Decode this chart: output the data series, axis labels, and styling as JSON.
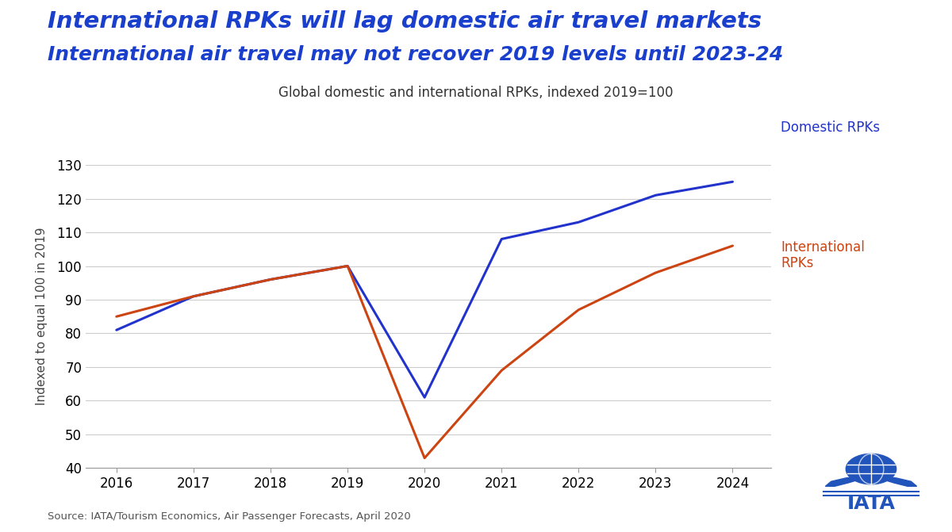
{
  "title_line1": "International RPKs will lag domestic air travel markets",
  "title_line2": "International air travel may not recover 2019 levels until 2023-24",
  "subtitle": "Global domestic and international RPKs, indexed 2019=100",
  "ylabel": "Indexed to equal 100 in 2019",
  "source": "Source: IATA/Tourism Economics, Air Passenger Forecasts, April 2020",
  "title_color": "#1a3fcc",
  "domestic_color": "#2233cc",
  "international_color": "#cc4411",
  "x_values": [
    2016,
    2017,
    2018,
    2019,
    2020,
    2021,
    2022,
    2023,
    2024
  ],
  "domestic_rpk": [
    81,
    91,
    96,
    100,
    61,
    108,
    113,
    121,
    125
  ],
  "international_rpk": [
    85,
    91,
    96,
    100,
    43,
    69,
    87,
    98,
    106
  ],
  "ylim": [
    40,
    130
  ],
  "yticks": [
    40,
    50,
    60,
    70,
    80,
    90,
    100,
    110,
    120,
    130
  ],
  "background_color": "#ffffff",
  "label_domestic": "Domestic RPKs",
  "label_international": "International\nRPKs",
  "line_width": 2.2,
  "subtitle_fontsize": 12,
  "tick_fontsize": 12,
  "ylabel_fontsize": 11,
  "annotation_fontsize": 12
}
